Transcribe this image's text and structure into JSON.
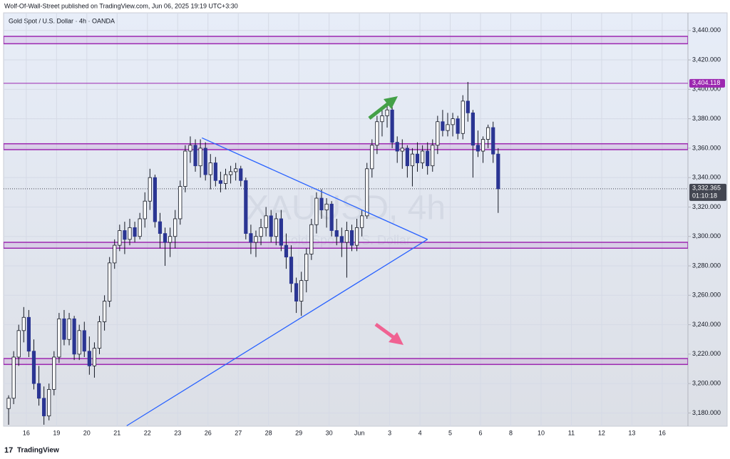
{
  "chart_data": {
    "type": "candlestick",
    "header": "Wolf-Of-Wall-Street published on TradingView.com, Jun 06, 2025 19:19 UTC+3:30",
    "title": "Gold Spot / U.S. Dollar · 4h · OANDA",
    "watermark": "XAUUSD, 4h",
    "watermark_sub": "Gold Spot / U.S. Dollar",
    "footer": "TradingView",
    "open": [
      3183,
      3190,
      3218,
      3236,
      3245,
      3222,
      3200,
      3190,
      3178,
      3196,
      3218,
      3244,
      3230,
      3244,
      3220,
      3236,
      3222,
      3212,
      3224,
      3242,
      3256,
      3282,
      3294,
      3304,
      3298,
      3306,
      3300,
      3312,
      3324,
      3340,
      3310,
      3302,
      3296,
      3300,
      3312,
      3334,
      3358,
      3362,
      3348,
      3360,
      3342,
      3350,
      3338,
      3336,
      3342,
      3344,
      3346,
      3338,
      3302,
      3296,
      3300,
      3306,
      3314,
      3300,
      3312,
      3294,
      3286,
      3268,
      3256,
      3270,
      3288,
      3308,
      3326,
      3318,
      3322,
      3304,
      3300,
      3296,
      3304,
      3294,
      3306,
      3314,
      3346,
      3362,
      3378,
      3382,
      3386,
      3364,
      3358,
      3360,
      3348,
      3356,
      3350,
      3358,
      3348,
      3362,
      3378,
      3372,
      3376,
      3380,
      3370,
      3392,
      3384,
      3362,
      3358,
      3366,
      3374,
      3356
    ],
    "high": [
      3192,
      3222,
      3240,
      3252,
      3250,
      3230,
      3212,
      3198,
      3200,
      3222,
      3248,
      3250,
      3248,
      3246,
      3240,
      3242,
      3232,
      3228,
      3246,
      3260,
      3286,
      3298,
      3308,
      3310,
      3312,
      3310,
      3316,
      3330,
      3346,
      3342,
      3316,
      3306,
      3306,
      3318,
      3338,
      3362,
      3368,
      3366,
      3366,
      3364,
      3356,
      3354,
      3344,
      3346,
      3348,
      3350,
      3348,
      3340,
      3308,
      3304,
      3312,
      3320,
      3318,
      3316,
      3318,
      3302,
      3294,
      3272,
      3276,
      3292,
      3312,
      3330,
      3332,
      3326,
      3324,
      3312,
      3306,
      3310,
      3308,
      3312,
      3318,
      3350,
      3366,
      3382,
      3388,
      3392,
      3388,
      3368,
      3366,
      3362,
      3360,
      3364,
      3362,
      3364,
      3366,
      3382,
      3386,
      3384,
      3384,
      3382,
      3396,
      3405,
      3386,
      3372,
      3368,
      3376,
      3378,
      3360
    ],
    "low": [
      3172,
      3186,
      3212,
      3228,
      3218,
      3196,
      3185,
      3172,
      3175,
      3192,
      3214,
      3226,
      3226,
      3216,
      3216,
      3218,
      3206,
      3204,
      3220,
      3236,
      3252,
      3278,
      3290,
      3288,
      3294,
      3296,
      3298,
      3306,
      3318,
      3306,
      3292,
      3280,
      3286,
      3292,
      3308,
      3330,
      3350,
      3344,
      3340,
      3338,
      3332,
      3334,
      3330,
      3332,
      3336,
      3338,
      3334,
      3298,
      3288,
      3286,
      3294,
      3300,
      3296,
      3294,
      3290,
      3278,
      3262,
      3248,
      3246,
      3262,
      3284,
      3302,
      3312,
      3306,
      3300,
      3294,
      3286,
      3272,
      3290,
      3290,
      3300,
      3312,
      3340,
      3356,
      3368,
      3374,
      3360,
      3350,
      3346,
      3340,
      3334,
      3344,
      3346,
      3342,
      3344,
      3356,
      3368,
      3368,
      3368,
      3366,
      3366,
      3378,
      3340,
      3354,
      3350,
      3360,
      3350,
      3316
    ],
    "close": [
      3190,
      3218,
      3236,
      3245,
      3222,
      3200,
      3190,
      3178,
      3196,
      3218,
      3244,
      3230,
      3244,
      3220,
      3236,
      3222,
      3212,
      3224,
      3242,
      3256,
      3282,
      3294,
      3304,
      3298,
      3306,
      3300,
      3312,
      3324,
      3340,
      3310,
      3302,
      3296,
      3300,
      3312,
      3334,
      3358,
      3362,
      3348,
      3360,
      3342,
      3350,
      3338,
      3336,
      3342,
      3344,
      3346,
      3338,
      3302,
      3296,
      3300,
      3306,
      3314,
      3300,
      3312,
      3294,
      3286,
      3268,
      3256,
      3270,
      3288,
      3308,
      3326,
      3318,
      3322,
      3304,
      3300,
      3296,
      3304,
      3294,
      3306,
      3314,
      3346,
      3362,
      3378,
      3382,
      3386,
      3364,
      3358,
      3360,
      3348,
      3356,
      3350,
      3358,
      3348,
      3362,
      3378,
      3372,
      3376,
      3380,
      3370,
      3392,
      3384,
      3362,
      3358,
      3366,
      3374,
      3356,
      3332.365
    ],
    "up_color": "#ffffff",
    "down_color": "#2a3593",
    "zone_color": "#9c27b0",
    "trend_color": "#2962ff",
    "zones": [
      [
        3431,
        3436
      ],
      [
        3359,
        3363
      ],
      [
        3292,
        3296
      ],
      [
        3213,
        3217
      ]
    ],
    "trendlines": [
      {
        "x": [
          38.3,
          83
        ],
        "y": [
          3367,
          3298
        ]
      },
      {
        "x": [
          23.4,
          83
        ],
        "y": [
          3171.3,
          3298
        ]
      }
    ],
    "high_line": {
      "value": 3404.118,
      "label": "3,404.118"
    },
    "price_line": {
      "value": 3332.365,
      "label": "3,332.365",
      "countdown": "01:10:18"
    },
    "xlim": [
      -1,
      134.6
    ],
    "xticks": [
      {
        "value": 3.5,
        "label": "16"
      },
      {
        "value": 9.5,
        "label": "19"
      },
      {
        "value": 15.5,
        "label": "20"
      },
      {
        "value": 21.5,
        "label": "21"
      },
      {
        "value": 27.5,
        "label": "22"
      },
      {
        "value": 33.5,
        "label": "23"
      },
      {
        "value": 39.5,
        "label": "26"
      },
      {
        "value": 45.5,
        "label": "27"
      },
      {
        "value": 51.5,
        "label": "28"
      },
      {
        "value": 57.5,
        "label": "29"
      },
      {
        "value": 63.5,
        "label": "30"
      },
      {
        "value": 69.5,
        "label": "Jun"
      },
      {
        "value": 75.5,
        "label": "3"
      },
      {
        "value": 81.5,
        "label": "4"
      },
      {
        "value": 87.5,
        "label": "5"
      },
      {
        "value": 93.5,
        "label": "6"
      },
      {
        "value": 99.5,
        "label": "8"
      },
      {
        "value": 105.5,
        "label": "10"
      },
      {
        "value": 111.5,
        "label": "11"
      },
      {
        "value": 117.5,
        "label": "12"
      },
      {
        "value": 123.5,
        "label": "13"
      },
      {
        "value": 129.5,
        "label": "16"
      }
    ],
    "ylim": [
      3171,
      3452
    ],
    "yticks": [
      {
        "value": 3180,
        "label": "3,180.000"
      },
      {
        "value": 3200,
        "label": "3,200.000"
      },
      {
        "value": 3220,
        "label": "3,220.000"
      },
      {
        "value": 3240,
        "label": "3,240.000"
      },
      {
        "value": 3260,
        "label": "3,260.000"
      },
      {
        "value": 3280,
        "label": "3,280.000"
      },
      {
        "value": 3300,
        "label": "3,300.000"
      },
      {
        "value": 3320,
        "label": "3,320.000"
      },
      {
        "value": 3340,
        "label": "3,340.000"
      },
      {
        "value": 3360,
        "label": "3,360.000"
      },
      {
        "value": 3380,
        "label": "3,380.000"
      },
      {
        "value": 3400,
        "label": "3,400.000"
      },
      {
        "value": 3420,
        "label": "3,420.000"
      },
      {
        "value": 3440,
        "label": "3,440.000"
      }
    ],
    "grid": true
  }
}
